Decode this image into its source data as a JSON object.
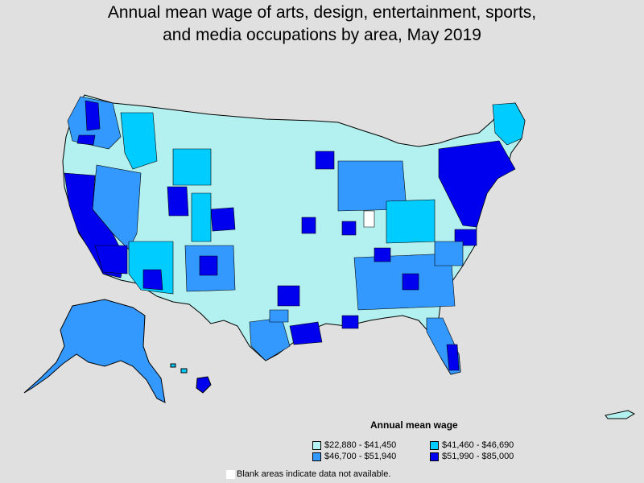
{
  "title_line1": "Annual mean wage of arts, design, entertainment, sports,",
  "title_line2": "and media occupations by area, May 2019",
  "legend": {
    "title": "Annual mean wage",
    "items": [
      {
        "label": "$22,880 - $41,450",
        "color": "#b3f0f0"
      },
      {
        "label": "$41,460 - $46,690",
        "color": "#00ccff"
      },
      {
        "label": "$46,700 - $51,940",
        "color": "#3399ff"
      },
      {
        "label": "$51,990 - $85,000",
        "color": "#0000ee"
      }
    ]
  },
  "note": "Blank areas indicate data not available.",
  "colors": {
    "background": "#e0e0e0",
    "border": "#000000",
    "blank": "#ffffff"
  }
}
